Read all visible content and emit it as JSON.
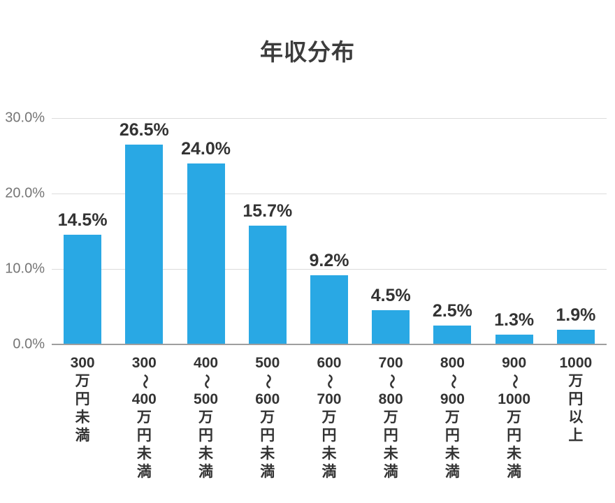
{
  "colors": {
    "bar": "#29a8e4",
    "grid": "#dcdcdc",
    "axis": "#9e9e9e",
    "title_text": "#3c3c3c",
    "label_text": "#333333",
    "tick_text": "#757575",
    "bg": "#ffffff"
  },
  "chart_data": {
    "type": "bar",
    "title": "年収分布",
    "categories": [
      "300万円未満",
      "300〜400万円未満",
      "400〜500万円未満",
      "500〜600万円未満",
      "600〜700万円未満",
      "700〜800万円未満",
      "800〜900万円未満",
      "900〜1000万円未満",
      "1000万円以上"
    ],
    "values": [
      14.5,
      26.5,
      24.0,
      15.7,
      9.2,
      4.5,
      2.5,
      1.3,
      1.9
    ],
    "data_labels": [
      "14.5%",
      "26.5%",
      "24.0%",
      "15.7%",
      "9.2%",
      "4.5%",
      "2.5%",
      "1.3%",
      "1.9%"
    ],
    "y_ticks": [
      "30.0%",
      "20.0%",
      "10.0%",
      "0.0%"
    ],
    "xlabel": "",
    "ylabel": "",
    "ylim": [
      0,
      30
    ],
    "grid": true,
    "legend": false,
    "x_label_orientation": "vertical"
  }
}
